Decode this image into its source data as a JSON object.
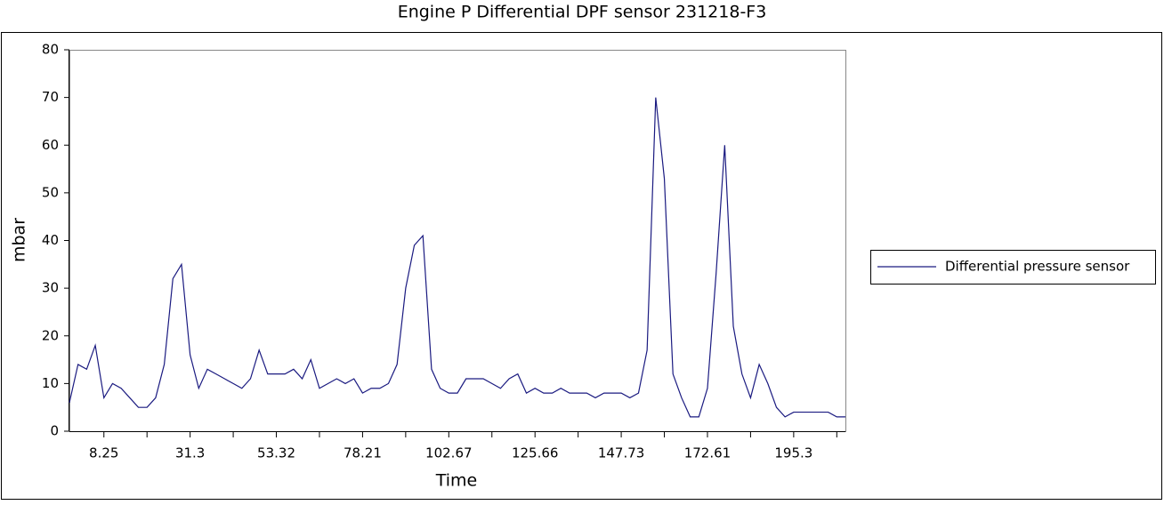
{
  "chart_data": {
    "type": "line",
    "title": "Engine P Differential DPF sensor 231218-F3",
    "x_label": "Time",
    "y_label": "mbar",
    "categories": [
      null,
      null,
      null,
      null,
      "8.25",
      null,
      null,
      null,
      null,
      null,
      null,
      null,
      null,
      null,
      "31.3",
      null,
      null,
      null,
      null,
      null,
      null,
      null,
      null,
      null,
      "53.32",
      null,
      null,
      null,
      null,
      null,
      null,
      null,
      null,
      null,
      "78.21",
      null,
      null,
      null,
      null,
      null,
      null,
      null,
      null,
      null,
      "102.67",
      null,
      null,
      null,
      null,
      null,
      null,
      null,
      null,
      null,
      "125.66",
      null,
      null,
      null,
      null,
      null,
      null,
      null,
      null,
      null,
      "147.73",
      null,
      null,
      null,
      null,
      null,
      null,
      null,
      null,
      null,
      "172.61",
      null,
      null,
      null,
      null,
      null,
      null,
      null,
      null,
      null,
      "195.3",
      null,
      null,
      null,
      null,
      null,
      null
    ],
    "series": [
      {
        "name": "Differential pressure sensor",
        "color": "#1a1a80",
        "values": [
          6,
          14,
          13,
          18,
          7,
          10,
          9,
          7,
          5,
          5,
          7,
          14,
          32,
          35,
          16,
          9,
          13,
          12,
          11,
          10,
          9,
          11,
          17,
          12,
          12,
          12,
          13,
          11,
          15,
          9,
          10,
          11,
          10,
          11,
          8,
          9,
          9,
          10,
          14,
          30,
          39,
          41,
          13,
          9,
          8,
          8,
          11,
          11,
          11,
          10,
          9,
          11,
          12,
          8,
          9,
          8,
          8,
          9,
          8,
          8,
          8,
          7,
          8,
          8,
          8,
          7,
          8,
          17,
          70,
          53,
          12,
          7,
          3,
          3,
          9,
          33,
          60,
          22,
          12,
          7,
          14,
          10,
          5,
          3,
          4,
          4,
          4,
          4,
          4,
          3,
          3
        ]
      }
    ],
    "ylim": [
      0,
      80
    ],
    "yticks": [
      0,
      10,
      20,
      30,
      40,
      50,
      60,
      70,
      80
    ],
    "grid": false,
    "legend": "right"
  }
}
